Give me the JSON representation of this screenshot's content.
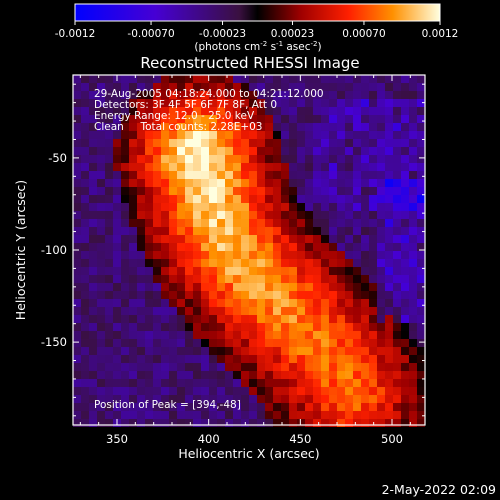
{
  "chart_data": {
    "type": "heatmap",
    "title": "Reconstructed RHESSI Image",
    "xlabel": "Heliocentric X (arcsec)",
    "ylabel": "Heliocentric Y (arcsec)",
    "xlim": [
      326,
      518
    ],
    "ylim": [
      -195,
      -5
    ],
    "xticks": [
      350,
      400,
      450,
      500
    ],
    "yticks": [
      -50,
      -100,
      -150
    ],
    "colorbar": {
      "min": -0.0012,
      "max": 0.0012,
      "ticks": [
        "-0.0012",
        "-0.00070",
        "-0.00023",
        "0.00023",
        "0.00070",
        "0.0012"
      ],
      "unit_base": "(photons cm",
      "unit_exp1": "-2",
      "unit_mid1": " s",
      "unit_exp2": "-1",
      "unit_mid2": " asec",
      "unit_exp3": "-2",
      "unit_end": ")"
    },
    "annotations": [
      "29-Aug-2005 04:18:24.000 to 04:21:12.000",
      "Detectors: 3F 4F 5F 6F 7F 8F, Att 0",
      "Energy Range: 12.0 - 25.0 keV",
      "Clean     Total counts: 2.28E+03"
    ],
    "peak_label": "Position of Peak = [394,-48]",
    "source_ridge": [
      {
        "x": 394,
        "y": -48,
        "v": 0.0012
      },
      {
        "x": 400,
        "y": -70,
        "v": 0.0011
      },
      {
        "x": 410,
        "y": -95,
        "v": 0.001
      },
      {
        "x": 425,
        "y": -115,
        "v": 0.00095
      },
      {
        "x": 445,
        "y": -135,
        "v": 0.00085
      },
      {
        "x": 465,
        "y": -158,
        "v": 0.0008
      },
      {
        "x": 478,
        "y": -178,
        "v": 0.00075
      }
    ]
  },
  "footer": {
    "date": "2-May-2022 02:09"
  }
}
